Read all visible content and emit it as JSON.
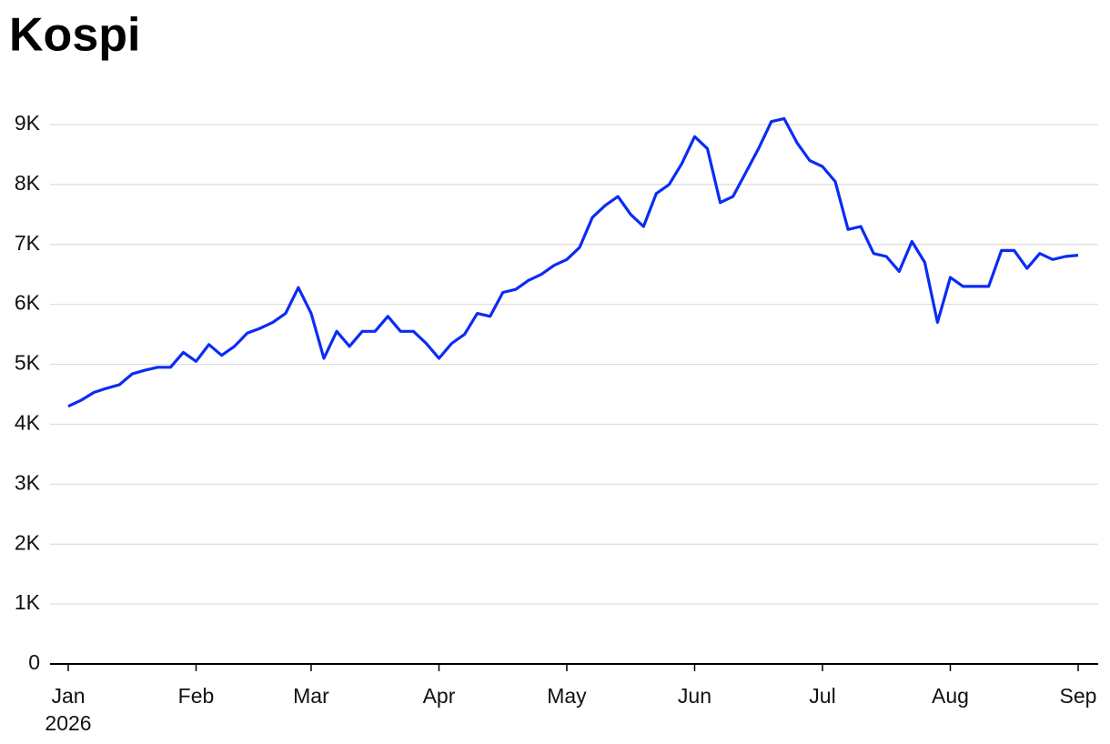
{
  "chart_data": {
    "type": "line",
    "title": "Kospi",
    "color": "#0a2cf5",
    "grid": true,
    "year": "2026",
    "categories": [
      "Jan",
      null,
      null,
      null,
      null,
      null,
      null,
      null,
      null,
      null,
      "Feb",
      null,
      null,
      null,
      null,
      null,
      null,
      null,
      null,
      "Mar",
      null,
      null,
      null,
      null,
      null,
      null,
      null,
      null,
      null,
      "Apr",
      null,
      null,
      null,
      null,
      null,
      null,
      null,
      null,
      null,
      "May",
      null,
      null,
      null,
      null,
      null,
      null,
      null,
      null,
      null,
      "Jun",
      null,
      null,
      null,
      null,
      null,
      null,
      null,
      null,
      null,
      "Jul",
      null,
      null,
      null,
      null,
      null,
      null,
      null,
      null,
      null,
      "Aug",
      null,
      null,
      null,
      null,
      null,
      null,
      null,
      null,
      null,
      "Sep"
    ],
    "values": [
      4300,
      4400,
      4530,
      4600,
      4660,
      4840,
      4900,
      4950,
      4950,
      5200,
      5050,
      5330,
      5150,
      5300,
      5520,
      5600,
      5700,
      5850,
      6280,
      5850,
      5100,
      5550,
      5300,
      5550,
      5550,
      5800,
      5550,
      5550,
      5350,
      5100,
      5350,
      5500,
      5850,
      5800,
      6200,
      6250,
      6400,
      6500,
      6650,
      6750,
      6950,
      7450,
      7650,
      7800,
      7500,
      7300,
      7850,
      8000,
      8350,
      8800,
      8600,
      7700,
      7800,
      8200,
      8600,
      9050,
      9100,
      8700,
      8400,
      8300,
      8050,
      7250,
      7300,
      6850,
      6800,
      6550,
      7050,
      6700,
      5700,
      6450,
      6300,
      6300,
      6300,
      6900,
      6900,
      6600,
      6850,
      6750,
      6800,
      6820
    ],
    "ylim": [
      0,
      9000
    ],
    "yticks": [
      0,
      {
        "value": 1000,
        "label": "1K"
      },
      {
        "value": 2000,
        "label": "2K"
      },
      {
        "value": 3000,
        "label": "3K"
      },
      {
        "value": 4000,
        "label": "4K"
      },
      {
        "value": 5000,
        "label": "5K"
      },
      {
        "value": 6000,
        "label": "6K"
      },
      {
        "value": 7000,
        "label": "7K"
      },
      {
        "value": 8000,
        "label": "8K"
      },
      {
        "value": 9000,
        "label": "9K"
      }
    ]
  }
}
